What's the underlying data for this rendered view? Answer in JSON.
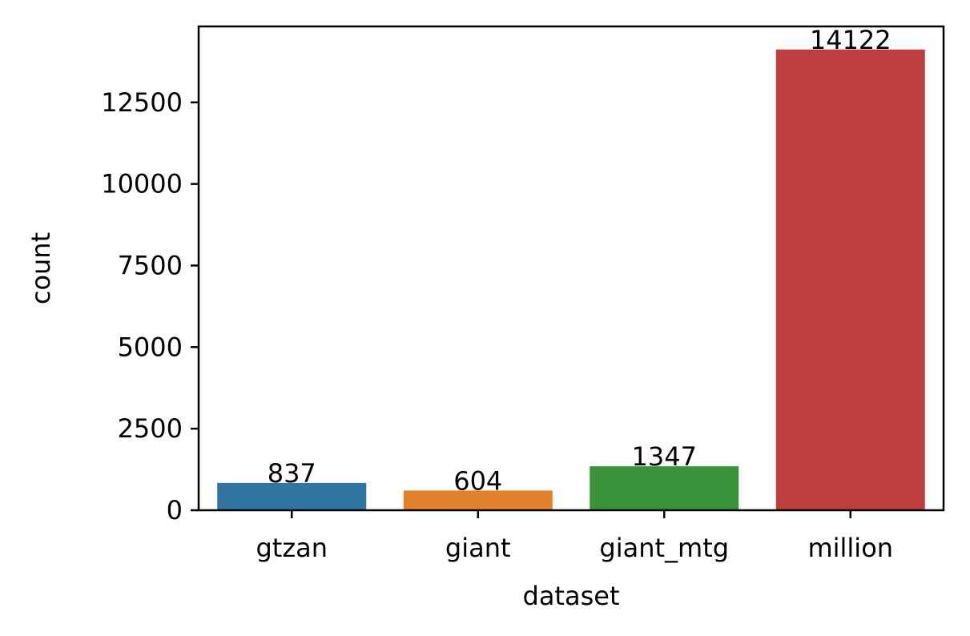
{
  "chart_data": {
    "type": "bar",
    "categories": [
      "gtzan",
      "giant",
      "giant_mtg",
      "million"
    ],
    "values": [
      837,
      604,
      1347,
      14122
    ],
    "value_labels": [
      "837",
      "604",
      "1347",
      "14122"
    ],
    "colors": [
      "#3274a1",
      "#e1812c",
      "#3a923a",
      "#c03d3e"
    ],
    "xlabel": "dataset",
    "ylabel": "count",
    "ylim": [
      0,
      14828
    ],
    "yticks": [
      0,
      2500,
      5000,
      7500,
      10000,
      12500
    ],
    "ytick_labels": [
      "0",
      "2500",
      "5000",
      "7500",
      "10000",
      "12500"
    ],
    "grid": false,
    "legend": "none"
  }
}
